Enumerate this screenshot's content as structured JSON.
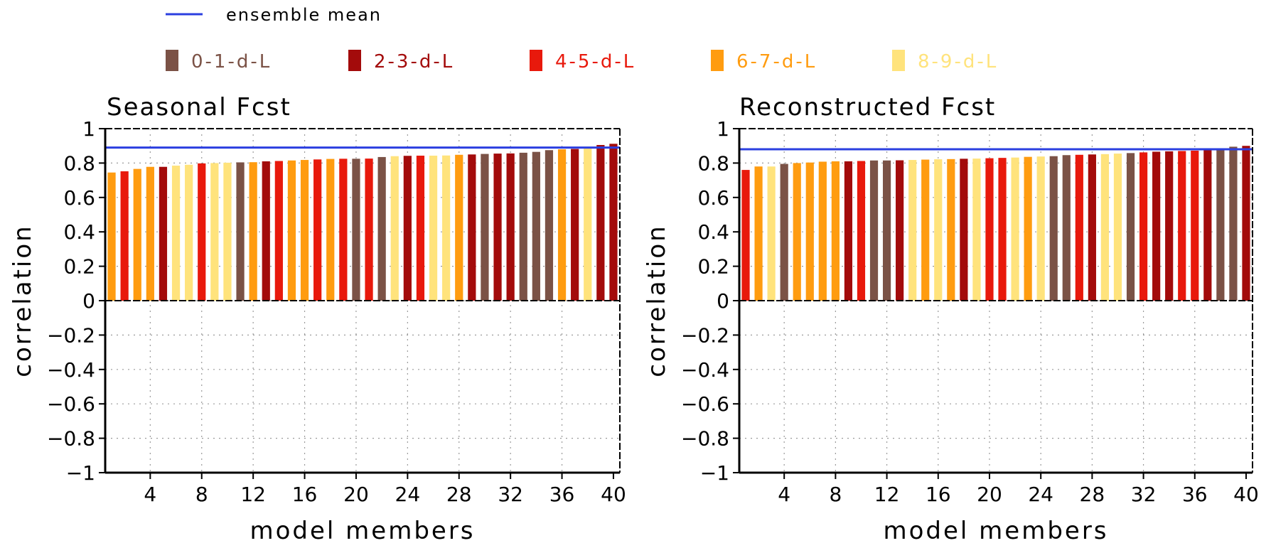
{
  "legend": {
    "line_label": "ensemble mean",
    "line_color": "#2b3fe0",
    "groups": [
      {
        "label": "0-1-d-L",
        "color": "#7b5246"
      },
      {
        "label": "2-3-d-L",
        "color": "#a30b0b"
      },
      {
        "label": "4-5-d-L",
        "color": "#e8190c"
      },
      {
        "label": "6-7-d-L",
        "color": "#ff9c10"
      },
      {
        "label": "8-9-d-L",
        "color": "#ffe37c"
      }
    ]
  },
  "chart_data": [
    {
      "type": "bar",
      "title": "Seasonal Fcst",
      "xlabel": "model members",
      "ylabel": "correlation",
      "ylim": [
        -1,
        1
      ],
      "xlim": [
        0.5,
        40.5
      ],
      "xticks": [
        4,
        8,
        12,
        16,
        20,
        24,
        28,
        32,
        36,
        40
      ],
      "yticks": [
        -1,
        -0.8,
        -0.6,
        -0.4,
        -0.2,
        0,
        0.2,
        0.4,
        0.6,
        0.8,
        1
      ],
      "ytick_labels": [
        "−1",
        "−0.8",
        "−0.6",
        "−0.4",
        "−0.2",
        "0",
        "0.2",
        "0.4",
        "0.6",
        "0.8",
        "1"
      ],
      "grid": true,
      "ensemble_mean": 0.89,
      "x": [
        1,
        2,
        3,
        4,
        5,
        6,
        7,
        8,
        9,
        10,
        11,
        12,
        13,
        14,
        15,
        16,
        17,
        18,
        19,
        20,
        21,
        22,
        23,
        24,
        25,
        26,
        27,
        28,
        29,
        30,
        31,
        32,
        33,
        34,
        35,
        36,
        37,
        38,
        39,
        40
      ],
      "values": [
        0.745,
        0.752,
        0.766,
        0.778,
        0.778,
        0.785,
        0.79,
        0.798,
        0.8,
        0.802,
        0.804,
        0.805,
        0.81,
        0.812,
        0.815,
        0.818,
        0.821,
        0.824,
        0.825,
        0.825,
        0.826,
        0.835,
        0.84,
        0.842,
        0.843,
        0.843,
        0.844,
        0.848,
        0.85,
        0.853,
        0.855,
        0.856,
        0.86,
        0.865,
        0.875,
        0.88,
        0.882,
        0.885,
        0.905,
        0.912
      ],
      "groups": [
        3,
        2,
        3,
        3,
        1,
        4,
        4,
        2,
        4,
        4,
        0,
        3,
        1,
        2,
        3,
        3,
        2,
        3,
        2,
        0,
        2,
        0,
        4,
        1,
        2,
        4,
        4,
        3,
        1,
        0,
        1,
        1,
        0,
        0,
        0,
        3,
        1,
        4,
        1,
        1
      ]
    },
    {
      "type": "bar",
      "title": "Reconstructed Fcst",
      "xlabel": "model members",
      "ylabel": "correlation",
      "ylim": [
        -1,
        1
      ],
      "xlim": [
        0.5,
        40.5
      ],
      "xticks": [
        4,
        8,
        12,
        16,
        20,
        24,
        28,
        32,
        36,
        40
      ],
      "yticks": [
        -1,
        -0.8,
        -0.6,
        -0.4,
        -0.2,
        0,
        0.2,
        0.4,
        0.6,
        0.8,
        1
      ],
      "ytick_labels": [
        "−1",
        "−0.8",
        "−0.6",
        "−0.4",
        "−0.2",
        "0",
        "0.2",
        "0.4",
        "0.6",
        "0.8",
        "1"
      ],
      "grid": true,
      "ensemble_mean": 0.88,
      "x": [
        1,
        2,
        3,
        4,
        5,
        6,
        7,
        8,
        9,
        10,
        11,
        12,
        13,
        14,
        15,
        16,
        17,
        18,
        19,
        20,
        21,
        22,
        23,
        24,
        25,
        26,
        27,
        28,
        29,
        30,
        31,
        32,
        33,
        34,
        35,
        36,
        37,
        38,
        39,
        40
      ],
      "values": [
        0.76,
        0.78,
        0.78,
        0.795,
        0.8,
        0.803,
        0.808,
        0.81,
        0.81,
        0.812,
        0.815,
        0.815,
        0.816,
        0.818,
        0.82,
        0.822,
        0.823,
        0.825,
        0.826,
        0.828,
        0.83,
        0.832,
        0.836,
        0.838,
        0.84,
        0.846,
        0.848,
        0.85,
        0.852,
        0.855,
        0.858,
        0.862,
        0.866,
        0.868,
        0.87,
        0.872,
        0.875,
        0.88,
        0.895,
        0.9
      ],
      "groups": [
        2,
        3,
        4,
        0,
        3,
        3,
        3,
        3,
        1,
        2,
        0,
        0,
        1,
        4,
        3,
        4,
        3,
        1,
        4,
        2,
        2,
        4,
        3,
        4,
        0,
        0,
        2,
        1,
        4,
        4,
        0,
        2,
        1,
        1,
        2,
        2,
        1,
        0,
        0,
        1
      ]
    }
  ]
}
